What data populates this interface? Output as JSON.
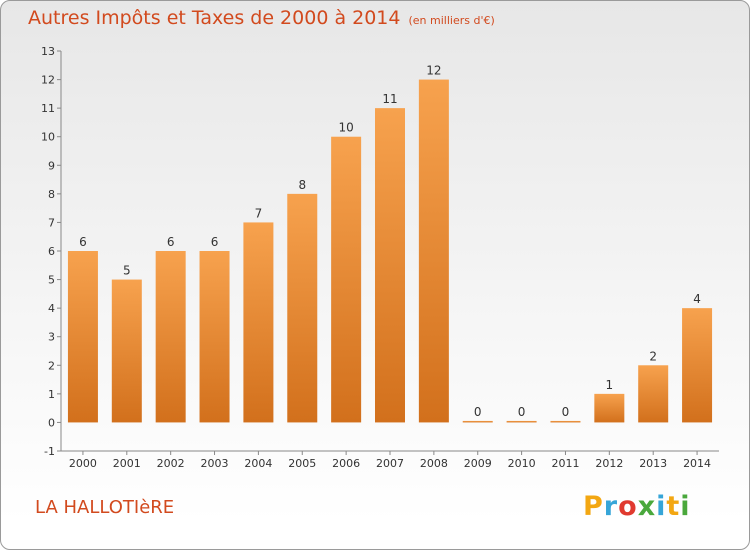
{
  "chart_data": {
    "type": "bar",
    "title": "Autres Impôts et Taxes de 2000 à 2014",
    "unit": "(en milliers d'€)",
    "categories": [
      "2000",
      "2001",
      "2002",
      "2003",
      "2004",
      "2005",
      "2006",
      "2007",
      "2008",
      "2009",
      "2010",
      "2011",
      "2012",
      "2013",
      "2014"
    ],
    "values": [
      6,
      5,
      6,
      6,
      7,
      8,
      10,
      11,
      12,
      0,
      0,
      0,
      1,
      2,
      4
    ],
    "ylim": [
      -1,
      13
    ],
    "yticks": [
      -1,
      0,
      1,
      2,
      3,
      4,
      5,
      6,
      7,
      8,
      9,
      10,
      11,
      12,
      13
    ],
    "grid": false,
    "bar_color": "#e8822e",
    "text_color": "#d24a1e"
  },
  "place_name": "LA HALLOTIèRE",
  "brand": {
    "letters": [
      "P",
      "r",
      "o",
      "x",
      "i",
      "t",
      "i"
    ],
    "colors": [
      "#f3a712",
      "#36a5d8",
      "#e03a2f",
      "#4aa83c",
      "#36a5d8",
      "#f3a712",
      "#4aa83c"
    ]
  }
}
